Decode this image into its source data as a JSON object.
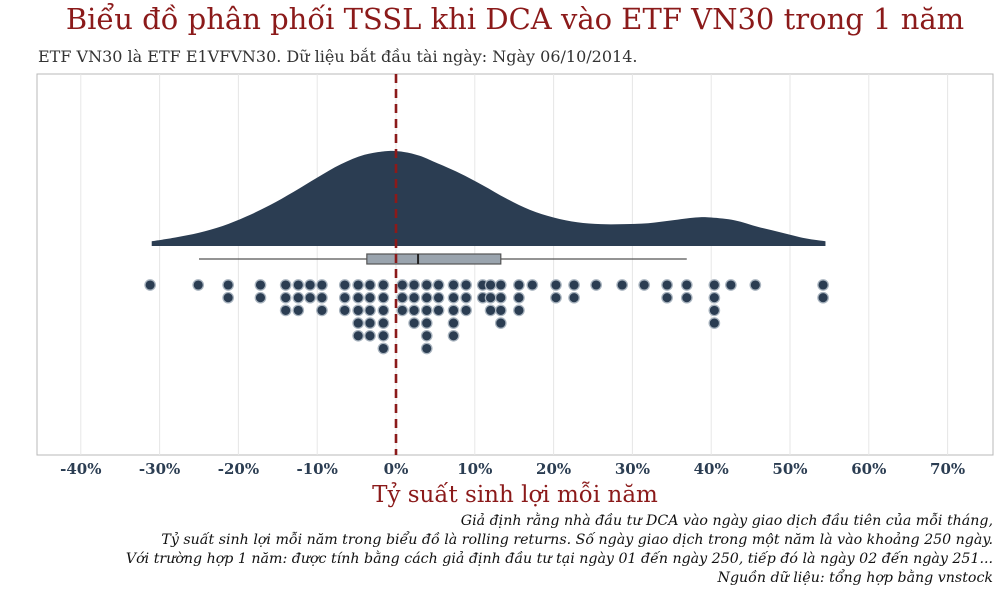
{
  "title": "Biểu đồ phân phối TSSL khi DCA vào ETF VN30 trong 1 năm",
  "subtitle": "ETF VN30 là ETF E1VFVN30.  Dữ liệu bắt đầu tài ngày: Ngày 06/10/2014.",
  "colors": {
    "accent": "#8b1a1a",
    "density": "#2b3d52",
    "box": "#9aa4ae",
    "dot": "#2b3d52",
    "ref_line": "#8b1a1a"
  },
  "notes": [
    "Giả định rằng nhà đầu tư DCA vào ngày giao dịch đầu tiên của mỗi tháng,",
    "Tỷ suất sinh lợi mỗi năm trong biểu đồ là rolling returns. Số ngày giao dịch trong một năm là vào khoảng 250 ngày.",
    "Với trường hợp 1 năm: được tính bằng cách giả định đầu tư tại ngày 01 đến ngày 250, tiếp đó là ngày 02 đến ngày 251...",
    "Nguồn dữ liệu: tổng hợp bằng vnstock"
  ],
  "chart_data": {
    "type": "raincloud",
    "xlabel": "Tỷ suất sinh lợi mỗi năm",
    "xlim": [
      -45,
      75
    ],
    "xticks": [
      -40,
      -30,
      -20,
      -10,
      0,
      10,
      20,
      30,
      40,
      50,
      60,
      70
    ],
    "xtick_labels": [
      "-40%",
      "-30%",
      "-20%",
      "-10%",
      "0%",
      "10%",
      "20%",
      "30%",
      "40%",
      "50%",
      "60%",
      "70%"
    ],
    "grid": "vertical",
    "reference_line": 0,
    "density": {
      "x": [
        -31,
        -28,
        -25,
        -22,
        -19,
        -16,
        -13,
        -10,
        -7,
        -4,
        -1,
        1,
        3,
        5,
        8,
        11,
        14,
        17,
        20,
        23,
        26,
        29,
        32,
        35,
        38,
        40,
        43,
        46,
        49,
        52,
        54.5
      ],
      "y": [
        0.05,
        0.09,
        0.14,
        0.21,
        0.31,
        0.43,
        0.57,
        0.72,
        0.86,
        0.96,
        1.0,
        0.99,
        0.95,
        0.88,
        0.77,
        0.64,
        0.5,
        0.38,
        0.3,
        0.25,
        0.23,
        0.23,
        0.24,
        0.27,
        0.3,
        0.3,
        0.27,
        0.2,
        0.14,
        0.08,
        0.05
      ]
    },
    "box": {
      "whisker_low": -25,
      "q1": -3.7,
      "median": 2.8,
      "q3": 13.3,
      "whisker_high": 36.9
    },
    "dot_columns": [
      {
        "x": -31.2,
        "count": 1
      },
      {
        "x": -25.1,
        "count": 1
      },
      {
        "x": -21.3,
        "count": 2
      },
      {
        "x": -17.2,
        "count": 2
      },
      {
        "x": -14.0,
        "count": 3
      },
      {
        "x": -12.4,
        "count": 3
      },
      {
        "x": -10.9,
        "count": 2
      },
      {
        "x": -9.4,
        "count": 3
      },
      {
        "x": -6.5,
        "count": 3
      },
      {
        "x": -4.8,
        "count": 5
      },
      {
        "x": -3.3,
        "count": 5
      },
      {
        "x": -1.6,
        "count": 6
      },
      {
        "x": 0.8,
        "count": 3
      },
      {
        "x": 2.3,
        "count": 4
      },
      {
        "x": 3.9,
        "count": 6
      },
      {
        "x": 5.4,
        "count": 3
      },
      {
        "x": 7.3,
        "count": 5
      },
      {
        "x": 8.9,
        "count": 3
      },
      {
        "x": 11.0,
        "count": 2
      },
      {
        "x": 12.0,
        "count": 3
      },
      {
        "x": 13.3,
        "count": 4
      },
      {
        "x": 15.6,
        "count": 3
      },
      {
        "x": 17.3,
        "count": 1
      },
      {
        "x": 20.3,
        "count": 2
      },
      {
        "x": 22.6,
        "count": 2
      },
      {
        "x": 25.4,
        "count": 1
      },
      {
        "x": 28.7,
        "count": 1
      },
      {
        "x": 31.5,
        "count": 1
      },
      {
        "x": 34.4,
        "count": 2
      },
      {
        "x": 36.9,
        "count": 2
      },
      {
        "x": 40.4,
        "count": 4
      },
      {
        "x": 42.5,
        "count": 1
      },
      {
        "x": 45.6,
        "count": 1
      },
      {
        "x": 54.2,
        "count": 2
      }
    ]
  }
}
